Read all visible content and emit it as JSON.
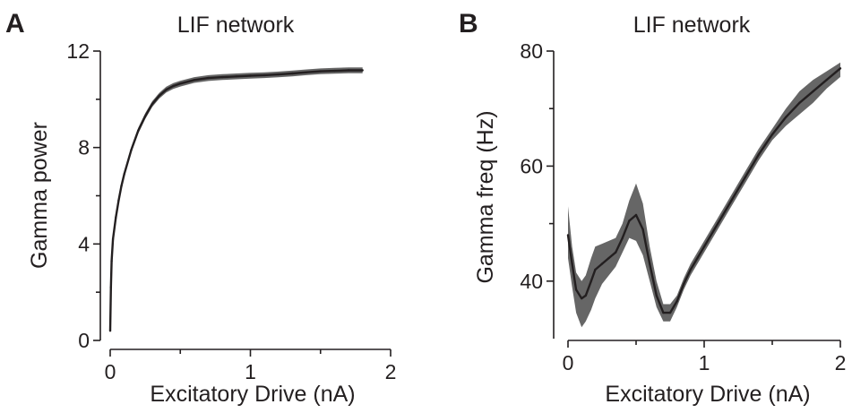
{
  "chart_data": [
    {
      "type": "line",
      "panel_label": "A",
      "title": "LIF network",
      "xlabel": "Excitatory Drive (nA)",
      "ylabel": "Gamma power",
      "xlim": [
        0,
        2
      ],
      "ylim": [
        0,
        12
      ],
      "xticks": [
        0,
        1,
        2
      ],
      "yticks": [
        0,
        4,
        8,
        12
      ],
      "xtick_labels": [
        "0",
        "1",
        "2"
      ],
      "ytick_labels": [
        "0",
        "4",
        "8",
        "12"
      ],
      "grid": false,
      "line_color": "#231f20",
      "band_color": "#666666",
      "series": [
        {
          "x": [
            0.0,
            0.005,
            0.01,
            0.02,
            0.04,
            0.06,
            0.08,
            0.1,
            0.15,
            0.2,
            0.25,
            0.3,
            0.35,
            0.4,
            0.45,
            0.5,
            0.6,
            0.7,
            0.8,
            0.9,
            1.0,
            1.1,
            1.2,
            1.3,
            1.4,
            1.5,
            1.6,
            1.7,
            1.8
          ],
          "y": [
            0.4,
            2.2,
            3.3,
            4.2,
            5.1,
            5.8,
            6.4,
            6.9,
            7.9,
            8.7,
            9.3,
            9.8,
            10.15,
            10.4,
            10.55,
            10.65,
            10.8,
            10.88,
            10.92,
            10.95,
            10.98,
            11.0,
            11.03,
            11.07,
            11.12,
            11.16,
            11.18,
            11.2,
            11.2
          ],
          "band": 0.12
        }
      ]
    },
    {
      "type": "line",
      "panel_label": "B",
      "title": "LIF network",
      "xlabel": "Excitatory Drive (nA)",
      "ylabel": "Gamma freq (Hz)",
      "xlim": [
        0,
        2
      ],
      "ylim": [
        30,
        80
      ],
      "xticks": [
        0,
        1,
        2
      ],
      "yticks": [
        40,
        60,
        80
      ],
      "xtick_labels": [
        "0",
        "1",
        "2"
      ],
      "ytick_labels": [
        "40",
        "60",
        "80"
      ],
      "grid": false,
      "line_color": "#231f20",
      "band_color": "#666666",
      "series": [
        {
          "x": [
            0.0,
            0.03,
            0.06,
            0.1,
            0.13,
            0.17,
            0.2,
            0.25,
            0.3,
            0.35,
            0.4,
            0.45,
            0.5,
            0.55,
            0.6,
            0.65,
            0.7,
            0.75,
            0.8,
            0.85,
            0.9,
            1.0,
            1.1,
            1.2,
            1.3,
            1.4,
            1.5,
            1.6,
            1.7,
            1.8,
            1.9,
            2.0
          ],
          "y": [
            48,
            43,
            38.5,
            37,
            37.5,
            40,
            42,
            43,
            44,
            45,
            47.5,
            50.5,
            51.5,
            49,
            43,
            37.5,
            34.5,
            34.5,
            36.5,
            39.5,
            42,
            46,
            50,
            54,
            58,
            62,
            65.5,
            68.5,
            71,
            73,
            75,
            77
          ],
          "upper": [
            53,
            46,
            41.5,
            40,
            41,
            44,
            46,
            46.5,
            47,
            47.5,
            50,
            54,
            57,
            53.5,
            46,
            40,
            36,
            36,
            37.5,
            40.5,
            43,
            47,
            51,
            55,
            59,
            63,
            66.5,
            70,
            73,
            75,
            76.5,
            78
          ],
          "lower": [
            44,
            39,
            34.5,
            32,
            33,
            35,
            37,
            39.5,
            41,
            42.5,
            45,
            47.5,
            47,
            44.5,
            40,
            35.5,
            33,
            33,
            35.5,
            38.5,
            41,
            45,
            49,
            53,
            57,
            61,
            64.5,
            67,
            69,
            71,
            73.5,
            75.5
          ]
        }
      ]
    }
  ]
}
